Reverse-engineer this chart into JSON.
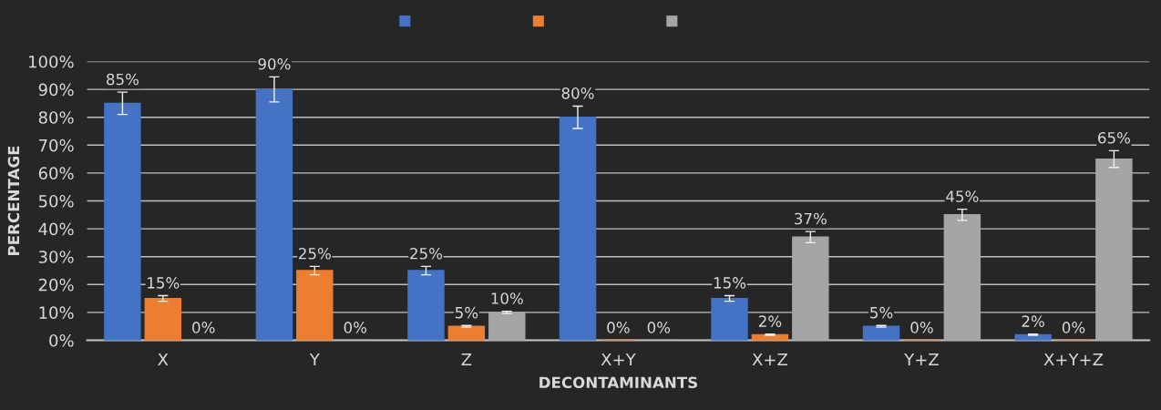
{
  "chart_data": {
    "type": "bar",
    "xlabel": "DECONTAMINANTS",
    "ylabel": "PERCENTAGE",
    "categories": [
      "X",
      "Y",
      "Z",
      "X+Y",
      "X+Z",
      "Y+Z",
      "X+Y+Z"
    ],
    "series": [
      {
        "color": "#4472c4",
        "values": [
          85,
          90,
          25,
          80,
          15,
          5,
          2
        ],
        "errors": [
          4,
          4.5,
          1.5,
          4,
          1,
          0.3,
          0.2
        ],
        "value_labels": [
          "85%",
          "90%",
          "25%",
          "80%",
          "15%",
          "5%",
          "2%"
        ]
      },
      {
        "color": "#ed7d31",
        "values": [
          15,
          25,
          5,
          0,
          2,
          0,
          0
        ],
        "errors": [
          1,
          1.5,
          0.3,
          null,
          0.2,
          null,
          null
        ],
        "value_labels": [
          "15%",
          "25%",
          "5%",
          "0%",
          "2%",
          "0%",
          "0%"
        ]
      },
      {
        "color": "#a5a5a5",
        "values": [
          0,
          0,
          10,
          0,
          37,
          45,
          65
        ],
        "errors": [
          null,
          null,
          0.4,
          null,
          2,
          2,
          3
        ],
        "value_labels": [
          "0%",
          "0%",
          "10%",
          "0%",
          "37%",
          "45%",
          "65%"
        ]
      }
    ],
    "ylim": [
      0,
      100
    ],
    "yticks": [
      {
        "value": 0,
        "label": "0%"
      },
      {
        "value": 10,
        "label": "10%"
      },
      {
        "value": 20,
        "label": "20%"
      },
      {
        "value": 30,
        "label": "30%"
      },
      {
        "value": 40,
        "label": "40%"
      },
      {
        "value": 50,
        "label": "50%"
      },
      {
        "value": 60,
        "label": "60%"
      },
      {
        "value": 70,
        "label": "70%"
      },
      {
        "value": 80,
        "label": "80%"
      },
      {
        "value": 90,
        "label": "90%"
      },
      {
        "value": 100,
        "label": "100%"
      }
    ],
    "grid": "y"
  }
}
